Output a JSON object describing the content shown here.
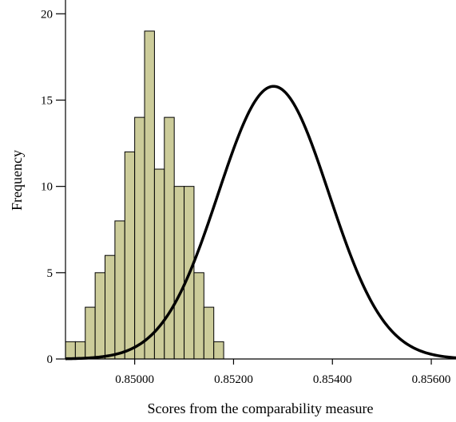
{
  "chart_data": {
    "type": "bar",
    "subtype": "histogram",
    "xlabel": "Scores from the comparability measure",
    "ylabel": "Frequency",
    "xlim": [
      0.8486,
      0.8565
    ],
    "ylim": [
      0,
      20.8
    ],
    "x_ticks": [
      0.85,
      0.852,
      0.854,
      0.856
    ],
    "x_tick_labels": [
      "0.85000",
      "0.85200",
      "0.85400",
      "0.85600"
    ],
    "y_ticks": [
      0,
      5,
      10,
      15,
      20
    ],
    "y_tick_labels": [
      "0",
      "5",
      "10",
      "15",
      "20"
    ],
    "bin_width": 0.0002,
    "bins": [
      {
        "start": 0.8486,
        "count": 1
      },
      {
        "start": 0.8488,
        "count": 1
      },
      {
        "start": 0.849,
        "count": 3
      },
      {
        "start": 0.8492,
        "count": 5
      },
      {
        "start": 0.8494,
        "count": 6
      },
      {
        "start": 0.8496,
        "count": 8
      },
      {
        "start": 0.8498,
        "count": 12
      },
      {
        "start": 0.85,
        "count": 14
      },
      {
        "start": 0.8502,
        "count": 19
      },
      {
        "start": 0.8504,
        "count": 11
      },
      {
        "start": 0.8506,
        "count": 14
      },
      {
        "start": 0.8508,
        "count": 10
      },
      {
        "start": 0.851,
        "count": 10
      },
      {
        "start": 0.8512,
        "count": 5
      },
      {
        "start": 0.8514,
        "count": 3
      },
      {
        "start": 0.8516,
        "count": 1
      }
    ],
    "normal_curve": {
      "mean": 0.85281,
      "sd": 0.00112,
      "peak": 15.8
    },
    "bar_color": "#cccc9a",
    "edge_color": "#000000",
    "curve_color": "#000000",
    "grid": false,
    "legend": "none"
  }
}
